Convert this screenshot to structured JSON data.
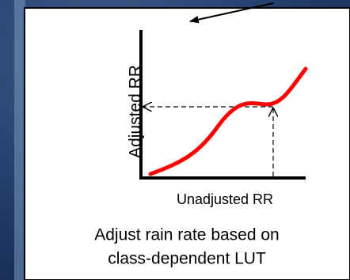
{
  "diagram": {
    "y_axis_label": "Adjusted RR",
    "x_axis_label": "Unadjusted RR",
    "caption": [
      "Adjust rain rate based on",
      "class-dependent LUT"
    ]
  }
}
